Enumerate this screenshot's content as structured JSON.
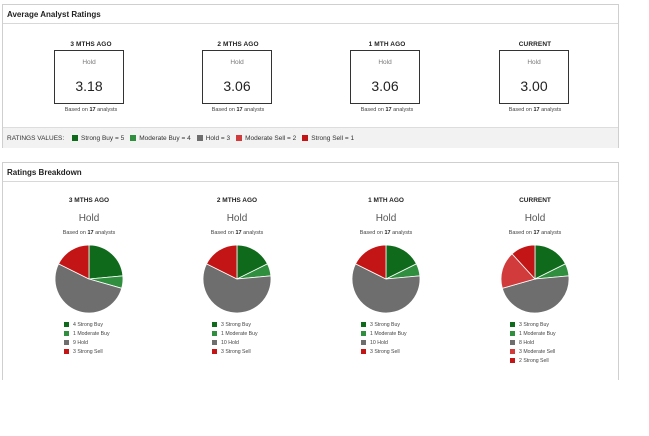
{
  "colors": {
    "strong_buy": "#0f6a1b",
    "moderate_buy": "#2f8f3e",
    "hold": "#6e6e6e",
    "moderate_sell": "#d23b3b",
    "strong_sell": "#c31515"
  },
  "avg": {
    "header": "Average Analyst Ratings",
    "based_prefix": "Based on",
    "based_suffix": "analysts",
    "periods": [
      {
        "title": "3 MTHS AGO",
        "consensus": "Hold",
        "value": "3.18",
        "count": "17"
      },
      {
        "title": "2 MTHS AGO",
        "consensus": "Hold",
        "value": "3.06",
        "count": "17"
      },
      {
        "title": "1 MTH AGO",
        "consensus": "Hold",
        "value": "3.06",
        "count": "17"
      },
      {
        "title": "CURRENT",
        "consensus": "Hold",
        "value": "3.00",
        "count": "17"
      }
    ],
    "legend_label": "RATINGS VALUES:",
    "legend": [
      {
        "label": "Strong Buy = 5",
        "color_key": "strong_buy"
      },
      {
        "label": "Moderate Buy = 4",
        "color_key": "moderate_buy"
      },
      {
        "label": "Hold = 3",
        "color_key": "hold"
      },
      {
        "label": "Moderate Sell = 2",
        "color_key": "moderate_sell"
      },
      {
        "label": "Strong Sell = 1",
        "color_key": "strong_sell"
      }
    ]
  },
  "breakdown": {
    "header": "Ratings Breakdown",
    "based_prefix": "Based on",
    "based_suffix": "analysts",
    "periods": [
      {
        "title": "3 MTHS AGO",
        "consensus": "Hold",
        "count": "17",
        "slices": [
          {
            "label": "4 Strong Buy",
            "value": 4,
            "color_key": "strong_buy"
          },
          {
            "label": "1 Moderate Buy",
            "value": 1,
            "color_key": "moderate_buy"
          },
          {
            "label": "9 Hold",
            "value": 9,
            "color_key": "hold"
          },
          {
            "label": "3 Strong Sell",
            "value": 3,
            "color_key": "strong_sell"
          }
        ]
      },
      {
        "title": "2 MTHS AGO",
        "consensus": "Hold",
        "count": "17",
        "slices": [
          {
            "label": "3 Strong Buy",
            "value": 3,
            "color_key": "strong_buy"
          },
          {
            "label": "1 Moderate Buy",
            "value": 1,
            "color_key": "moderate_buy"
          },
          {
            "label": "10 Hold",
            "value": 10,
            "color_key": "hold"
          },
          {
            "label": "3 Strong Sell",
            "value": 3,
            "color_key": "strong_sell"
          }
        ]
      },
      {
        "title": "1 MTH AGO",
        "consensus": "Hold",
        "count": "17",
        "slices": [
          {
            "label": "3 Strong Buy",
            "value": 3,
            "color_key": "strong_buy"
          },
          {
            "label": "1 Moderate Buy",
            "value": 1,
            "color_key": "moderate_buy"
          },
          {
            "label": "10 Hold",
            "value": 10,
            "color_key": "hold"
          },
          {
            "label": "3 Strong Sell",
            "value": 3,
            "color_key": "strong_sell"
          }
        ]
      },
      {
        "title": "CURRENT",
        "consensus": "Hold",
        "count": "17",
        "slices": [
          {
            "label": "3 Strong Buy",
            "value": 3,
            "color_key": "strong_buy"
          },
          {
            "label": "1 Moderate Buy",
            "value": 1,
            "color_key": "moderate_buy"
          },
          {
            "label": "8 Hold",
            "value": 8,
            "color_key": "hold"
          },
          {
            "label": "3 Moderate Sell",
            "value": 3,
            "color_key": "moderate_sell"
          },
          {
            "label": "2 Strong Sell",
            "value": 2,
            "color_key": "strong_sell"
          }
        ]
      }
    ]
  }
}
